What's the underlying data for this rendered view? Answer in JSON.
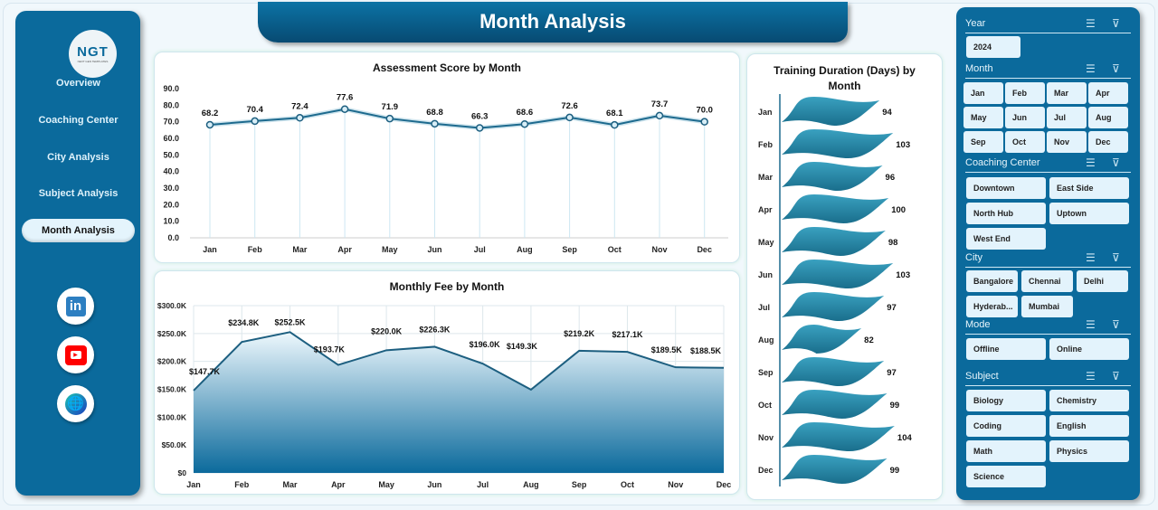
{
  "header": {
    "title": "Month Analysis"
  },
  "sidebar": {
    "logo_text": "NGT",
    "logo_sub": "NEXT GEN TEMPLATES",
    "items": [
      {
        "label": "Overview"
      },
      {
        "label": "Coaching Center"
      },
      {
        "label": "City Analysis"
      },
      {
        "label": "Subject Analysis"
      },
      {
        "label": "Month Analysis",
        "active": true
      }
    ],
    "social": [
      "linkedin-icon",
      "youtube-icon",
      "globe-icon"
    ]
  },
  "colors": {
    "primary": "#0b6a9c",
    "line": "#1d6a8e",
    "wave": "#2a8fb0",
    "linkedin": "#2d7fc1",
    "youtube": "#f00"
  },
  "chart_data": [
    {
      "type": "line",
      "title": "Assessment Score by Month",
      "categories": [
        "Jan",
        "Feb",
        "Mar",
        "Apr",
        "May",
        "Jun",
        "Jul",
        "Aug",
        "Sep",
        "Oct",
        "Nov",
        "Dec"
      ],
      "values": [
        68.2,
        70.4,
        72.4,
        77.6,
        71.9,
        68.8,
        66.3,
        68.6,
        72.6,
        68.1,
        73.7,
        70.0
      ],
      "ylim": [
        0,
        90
      ],
      "yticks": [
        "0.0",
        "10.0",
        "20.0",
        "30.0",
        "40.0",
        "50.0",
        "60.0",
        "70.0",
        "80.0",
        "90.0"
      ],
      "labels": [
        "68.2",
        "70.4",
        "72.4",
        "77.6",
        "71.9",
        "68.8",
        "66.3",
        "68.6",
        "72.6",
        "68.1",
        "73.7",
        "70.0"
      ]
    },
    {
      "type": "area",
      "title": "Monthly Fee by Month",
      "categories": [
        "Jan",
        "Feb",
        "Mar",
        "Apr",
        "May",
        "Jun",
        "Jul",
        "Aug",
        "Sep",
        "Oct",
        "Nov",
        "Dec"
      ],
      "values": [
        147700,
        234800,
        252500,
        193700,
        220000,
        226300,
        196000,
        149300,
        219200,
        217100,
        189500,
        188500
      ],
      "ylim": [
        0,
        300000
      ],
      "yticks": [
        "$0",
        "$50.0K",
        "$100.0K",
        "$150.0K",
        "$200.0K",
        "$250.0K",
        "$300.0K"
      ],
      "labels": [
        "$147.7K",
        "$234.8K",
        "$252.5K",
        "$193.7K",
        "$220.0K",
        "$226.3K",
        "$196.0K",
        "$149.3K",
        "$219.2K",
        "$217.1K",
        "$189.5K",
        "$188.5K"
      ],
      "grid": true
    },
    {
      "type": "bar",
      "orientation": "horizontal",
      "title": "Training Duration (Days) by Month",
      "categories": [
        "Jan",
        "Feb",
        "Mar",
        "Apr",
        "May",
        "Jun",
        "Jul",
        "Aug",
        "Sep",
        "Oct",
        "Nov",
        "Dec"
      ],
      "values": [
        94,
        103,
        96,
        100,
        98,
        103,
        97,
        82,
        97,
        99,
        104,
        99
      ],
      "labels": [
        "94",
        "103",
        "96",
        "100",
        "98",
        "103",
        "97",
        "82",
        "97",
        "99",
        "104",
        "99"
      ]
    }
  ],
  "slicers": [
    {
      "title": "Year",
      "items": [
        "2024"
      ]
    },
    {
      "title": "Month",
      "items": [
        "Jan",
        "Feb",
        "Mar",
        "Apr",
        "May",
        "Jun",
        "Jul",
        "Aug",
        "Sep",
        "Oct",
        "Nov",
        "Dec"
      ]
    },
    {
      "title": "Coaching Center",
      "items": [
        "Downtown",
        "East Side",
        "North Hub",
        "Uptown",
        "West End"
      ]
    },
    {
      "title": "City",
      "items": [
        "Bangalore",
        "Chennai",
        "Delhi",
        "Hyderab...",
        "Mumbai"
      ]
    },
    {
      "title": "Mode",
      "items": [
        "Offline",
        "Online"
      ]
    },
    {
      "title": "Subject",
      "items": [
        "Biology",
        "Chemistry",
        "Coding",
        "English",
        "Math",
        "Physics",
        "Science"
      ]
    }
  ]
}
